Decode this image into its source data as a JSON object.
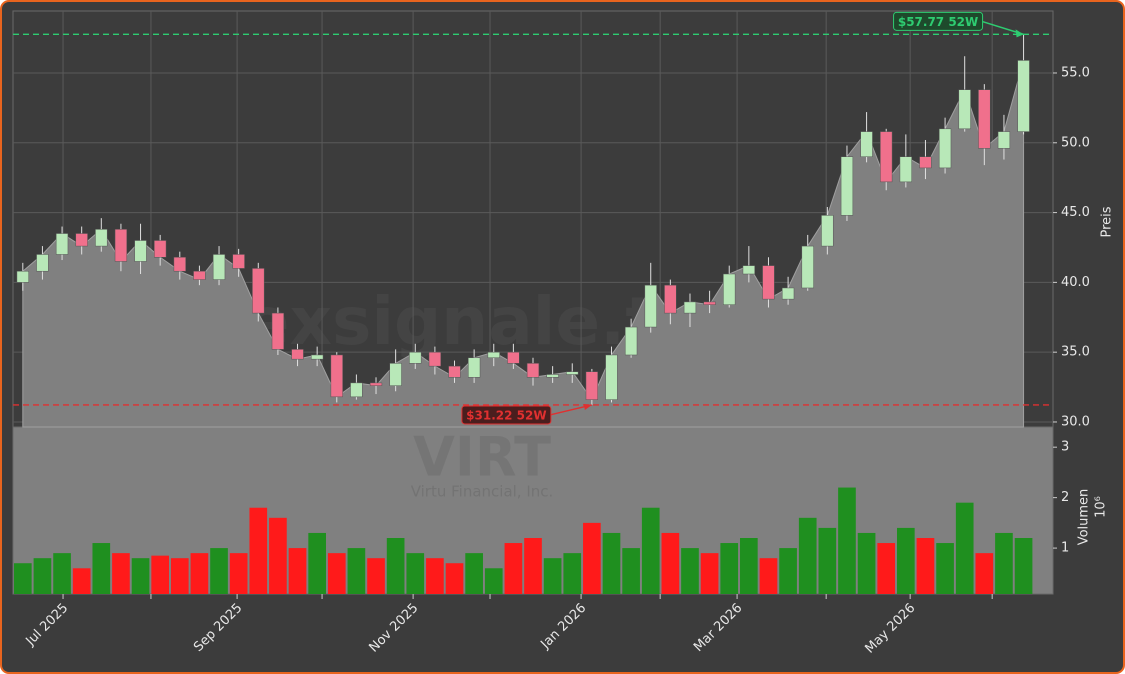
{
  "chart_data": {
    "type": "candlestick",
    "ticker_watermark": "VIRT",
    "company_watermark": "Virtu Financial, Inc.",
    "site_watermark": "forexsignale.trade",
    "y_label": "Preis",
    "volume_label": "Volumen",
    "volume_scale_label": "10⁶",
    "open": [
      40.0,
      40.8,
      42.0,
      43.5,
      42.6,
      43.8,
      41.5,
      43.0,
      41.8,
      40.8,
      40.2,
      42.0,
      41.0,
      37.8,
      35.2,
      34.5,
      34.8,
      31.8,
      32.8,
      32.6,
      34.2,
      35.0,
      34.0,
      33.2,
      34.6,
      35.0,
      34.2,
      33.2,
      33.4,
      33.6,
      31.6,
      34.8,
      36.8,
      39.8,
      37.8,
      38.6,
      38.4,
      40.6,
      41.2,
      38.8,
      39.6,
      42.6,
      44.8,
      49.0,
      50.8,
      47.2,
      49.0,
      48.2,
      51.0,
      53.8,
      49.6,
      50.8
    ],
    "high": [
      41.4,
      42.6,
      44.0,
      44.0,
      44.6,
      44.2,
      44.2,
      43.4,
      42.2,
      41.2,
      42.6,
      42.4,
      41.4,
      38.2,
      35.6,
      35.4,
      35.0,
      33.4,
      33.2,
      35.2,
      35.6,
      35.4,
      34.4,
      35.2,
      35.6,
      35.6,
      34.6,
      34.0,
      34.2,
      33.8,
      35.4,
      37.4,
      41.4,
      40.2,
      39.2,
      39.4,
      41.2,
      42.6,
      41.8,
      40.4,
      43.4,
      45.4,
      49.8,
      52.2,
      51.0,
      50.6,
      50.2,
      51.8,
      56.2,
      54.2,
      52.0,
      57.77
    ],
    "low": [
      39.4,
      40.2,
      41.6,
      42.0,
      42.2,
      40.8,
      40.6,
      41.2,
      40.2,
      39.8,
      39.8,
      40.4,
      37.2,
      34.8,
      34.0,
      34.0,
      31.4,
      31.6,
      32.0,
      32.2,
      33.8,
      33.4,
      32.8,
      32.8,
      34.0,
      33.8,
      32.6,
      32.8,
      32.8,
      31.22,
      31.4,
      34.6,
      36.4,
      37.0,
      36.8,
      37.8,
      38.2,
      40.0,
      38.2,
      38.4,
      39.4,
      42.0,
      44.4,
      48.6,
      46.6,
      46.8,
      47.4,
      47.8,
      50.8,
      48.4,
      48.8,
      50.6
    ],
    "close": [
      40.8,
      42.0,
      43.5,
      42.6,
      43.8,
      41.5,
      43.0,
      41.8,
      40.8,
      40.2,
      42.0,
      41.0,
      37.8,
      35.2,
      34.5,
      34.8,
      31.8,
      32.8,
      32.6,
      34.2,
      35.0,
      34.0,
      33.2,
      34.6,
      35.0,
      34.2,
      33.2,
      33.4,
      33.6,
      31.6,
      34.8,
      36.8,
      39.8,
      37.8,
      38.6,
      38.4,
      40.6,
      41.2,
      38.8,
      39.6,
      42.6,
      44.8,
      49.0,
      50.8,
      47.2,
      49.0,
      48.2,
      51.0,
      53.8,
      49.6,
      50.8,
      55.9
    ],
    "volume": [
      0.7,
      0.8,
      0.9,
      0.6,
      1.1,
      0.9,
      0.8,
      0.85,
      0.8,
      0.9,
      1.0,
      0.9,
      1.8,
      1.6,
      1.0,
      1.3,
      0.9,
      1.0,
      0.8,
      1.2,
      0.9,
      0.8,
      0.7,
      0.9,
      0.6,
      1.1,
      1.2,
      0.8,
      0.9,
      1.5,
      1.3,
      1.0,
      1.8,
      1.3,
      1.0,
      0.9,
      1.1,
      1.2,
      0.8,
      1.0,
      1.6,
      1.4,
      2.2,
      1.3,
      1.1,
      1.4,
      1.2,
      1.1,
      1.9,
      0.9,
      1.3,
      1.2
    ],
    "up_color": "#b8e8b8",
    "down_color": "#f0708c",
    "volume_up_color": "#1f8f1f",
    "volume_down_color": "#ff1a1a",
    "area_color": "#808080",
    "xlim": [
      -0.5,
      52.5
    ],
    "xticks": [
      {
        "value": 2.05,
        "label": "Jul 2025"
      },
      {
        "value": 10.92,
        "label": "Sep 2025"
      },
      {
        "value": 19.89,
        "label": "Nov 2025"
      },
      {
        "value": 28.45,
        "label": "Jan 2026"
      },
      {
        "value": 36.4,
        "label": "Mar 2026"
      },
      {
        "value": 45.22,
        "label": "May 2026"
      }
    ],
    "xminorticks": [
      6.53,
      15.25,
      23.81,
      32.48,
      40.94,
      49.4
    ],
    "ylim": [
      29.64,
      59.44
    ],
    "yticks": [
      {
        "value": 30,
        "label": "30.0"
      },
      {
        "value": 35,
        "label": "35.0"
      },
      {
        "value": 40,
        "label": "40.0"
      },
      {
        "value": 45,
        "label": "45.0"
      },
      {
        "value": 50,
        "label": "50.0"
      },
      {
        "value": 55,
        "label": "55.0"
      }
    ],
    "volume_ylim": [
      0.09,
      3.4
    ],
    "volume_yticks": [
      1,
      2,
      3
    ],
    "grid": true,
    "annotations": [
      {
        "text": "$57.77 52W",
        "value": 57.77,
        "color": "#2ecc71",
        "kind": "high"
      },
      {
        "text": "$31.22 52W",
        "value": 31.22,
        "color": "#e03030",
        "kind": "low"
      }
    ]
  }
}
